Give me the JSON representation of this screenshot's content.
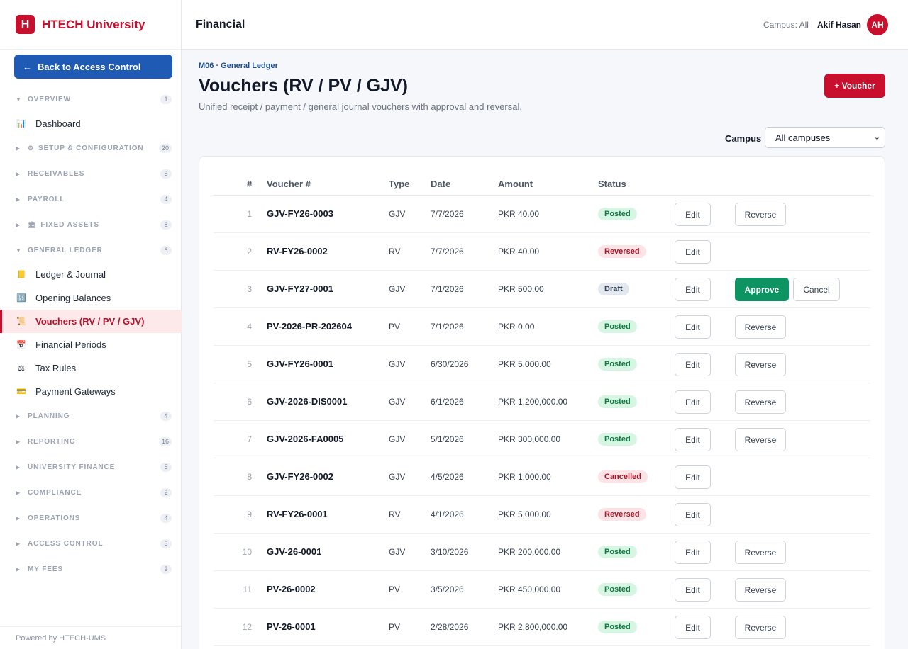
{
  "brand": {
    "logo_letter": "H",
    "name": "HTECH University"
  },
  "back_button": {
    "arrow": "←",
    "label": "Back to Access Control"
  },
  "nav": {
    "overview": {
      "caret": "▼",
      "label": "OVERVIEW",
      "count": "1"
    },
    "dashboard": {
      "icon": "📊",
      "label": "Dashboard"
    },
    "setup": {
      "caret": "▶",
      "icon": "⚙",
      "label": "SETUP & CONFIGURATION",
      "count": "20"
    },
    "receivables": {
      "caret": "▶",
      "label": "RECEIVABLES",
      "count": "5"
    },
    "payroll": {
      "caret": "▶",
      "label": "PAYROLL",
      "count": "4"
    },
    "fixed_assets": {
      "caret": "▶",
      "icon": "🏛",
      "label": "FIXED ASSETS",
      "count": "8"
    },
    "general_ledger": {
      "caret": "▼",
      "label": "GENERAL LEDGER",
      "count": "6"
    },
    "ledger_journal": {
      "icon": "📒",
      "label": "Ledger & Journal"
    },
    "opening_balances": {
      "icon": "🔢",
      "label": "Opening Balances"
    },
    "vouchers": {
      "icon": "📜",
      "label": "Vouchers (RV / PV / GJV)"
    },
    "financial_periods": {
      "icon": "📅",
      "label": "Financial Periods"
    },
    "tax_rules": {
      "icon": "⚖",
      "label": "Tax Rules"
    },
    "payment_gateways": {
      "icon": "💳",
      "label": "Payment Gateways"
    },
    "planning": {
      "caret": "▶",
      "label": "PLANNING",
      "count": "4"
    },
    "reporting": {
      "caret": "▶",
      "label": "REPORTING",
      "count": "16"
    },
    "university_finance": {
      "caret": "▶",
      "label": "UNIVERSITY FINANCE",
      "count": "5"
    },
    "compliance": {
      "caret": "▶",
      "label": "COMPLIANCE",
      "count": "2"
    },
    "operations": {
      "caret": "▶",
      "label": "OPERATIONS",
      "count": "4"
    },
    "access_control": {
      "caret": "▶",
      "label": "ACCESS CONTROL",
      "count": "3"
    },
    "my_fees": {
      "caret": "▶",
      "label": "MY FEES",
      "count": "2"
    }
  },
  "footer": "Powered by HTECH-UMS",
  "topbar": {
    "title": "Financial",
    "campus": "Campus: All",
    "user": "Akif Hasan",
    "avatar": "AH"
  },
  "page": {
    "crumb": "M06 · General Ledger",
    "title": "Vouchers (RV / PV / GJV)",
    "subtitle": "Unified receipt / payment / general journal vouchers with approval and reversal.",
    "add_button": "+ Voucher",
    "campus_label": "Campus",
    "campus_value": "All campuses",
    "campus_chevron": "⌄"
  },
  "table": {
    "headers": {
      "num": "#",
      "voucher": "Voucher #",
      "type": "Type",
      "date": "Date",
      "amount": "Amount",
      "status": "Status"
    },
    "actions": {
      "edit": "Edit",
      "reverse": "Reverse",
      "approve": "Approve",
      "cancel": "Cancel"
    },
    "rows": [
      {
        "num": "1",
        "voucher": "GJV-FY26-0003",
        "type": "GJV",
        "date": "7/7/2026",
        "amount": "PKR 40.00",
        "status": "Posted"
      },
      {
        "num": "2",
        "voucher": "RV-FY26-0002",
        "type": "RV",
        "date": "7/7/2026",
        "amount": "PKR 40.00",
        "status": "Reversed"
      },
      {
        "num": "3",
        "voucher": "GJV-FY27-0001",
        "type": "GJV",
        "date": "7/1/2026",
        "amount": "PKR 500.00",
        "status": "Draft"
      },
      {
        "num": "4",
        "voucher": "PV-2026-PR-202604",
        "type": "PV",
        "date": "7/1/2026",
        "amount": "PKR 0.00",
        "status": "Posted"
      },
      {
        "num": "5",
        "voucher": "GJV-FY26-0001",
        "type": "GJV",
        "date": "6/30/2026",
        "amount": "PKR 5,000.00",
        "status": "Posted"
      },
      {
        "num": "6",
        "voucher": "GJV-2026-DIS0001",
        "type": "GJV",
        "date": "6/1/2026",
        "amount": "PKR 1,200,000.00",
        "status": "Posted"
      },
      {
        "num": "7",
        "voucher": "GJV-2026-FA0005",
        "type": "GJV",
        "date": "5/1/2026",
        "amount": "PKR 300,000.00",
        "status": "Posted"
      },
      {
        "num": "8",
        "voucher": "GJV-FY26-0002",
        "type": "GJV",
        "date": "4/5/2026",
        "amount": "PKR 1,000.00",
        "status": "Cancelled"
      },
      {
        "num": "9",
        "voucher": "RV-FY26-0001",
        "type": "RV",
        "date": "4/1/2026",
        "amount": "PKR 5,000.00",
        "status": "Reversed"
      },
      {
        "num": "10",
        "voucher": "GJV-26-0001",
        "type": "GJV",
        "date": "3/10/2026",
        "amount": "PKR 200,000.00",
        "status": "Posted"
      },
      {
        "num": "11",
        "voucher": "PV-26-0002",
        "type": "PV",
        "date": "3/5/2026",
        "amount": "PKR 450,000.00",
        "status": "Posted"
      },
      {
        "num": "12",
        "voucher": "PV-26-0001",
        "type": "PV",
        "date": "2/28/2026",
        "amount": "PKR 2,800,000.00",
        "status": "Posted"
      }
    ]
  },
  "colors": {
    "brand": "#c8102e",
    "primary_blue": "#1f5bb5",
    "approve_green": "#0e9463"
  }
}
